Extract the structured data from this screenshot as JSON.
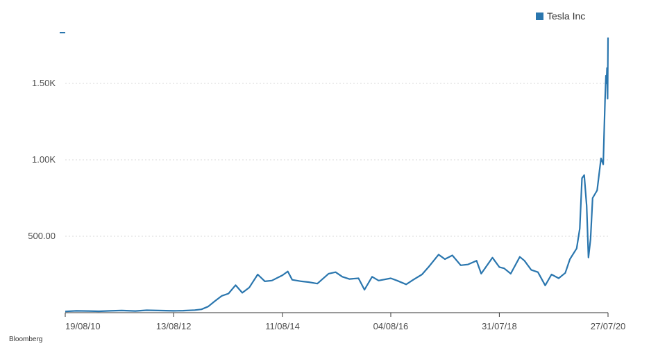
{
  "colors": {
    "series": "#2a76ae",
    "grid": "#d9d9d9",
    "axis": "#333333"
  },
  "source": "Bloomberg",
  "chart_data": {
    "type": "line",
    "series": [
      {
        "name": "Tesla Inc",
        "points": [
          [
            "2010-08-19",
            8
          ],
          [
            "2010-11-01",
            12
          ],
          [
            "2011-01-15",
            11
          ],
          [
            "2011-04-01",
            9
          ],
          [
            "2011-06-15",
            12
          ],
          [
            "2011-09-01",
            14
          ],
          [
            "2011-12-01",
            11
          ],
          [
            "2012-02-15",
            16
          ],
          [
            "2012-05-01",
            14
          ],
          [
            "2012-08-13",
            12
          ],
          [
            "2012-10-15",
            13
          ],
          [
            "2013-01-01",
            17
          ],
          [
            "2013-02-15",
            22
          ],
          [
            "2013-04-01",
            40
          ],
          [
            "2013-05-15",
            75
          ],
          [
            "2013-07-01",
            110
          ],
          [
            "2013-08-15",
            125
          ],
          [
            "2013-10-01",
            180
          ],
          [
            "2013-11-15",
            130
          ],
          [
            "2014-01-01",
            165
          ],
          [
            "2014-02-26",
            250
          ],
          [
            "2014-04-15",
            205
          ],
          [
            "2014-06-01",
            210
          ],
          [
            "2014-08-11",
            245
          ],
          [
            "2014-09-15",
            270
          ],
          [
            "2014-10-15",
            215
          ],
          [
            "2014-12-15",
            205
          ],
          [
            "2015-02-01",
            200
          ],
          [
            "2015-04-01",
            190
          ],
          [
            "2015-06-15",
            255
          ],
          [
            "2015-08-01",
            265
          ],
          [
            "2015-09-15",
            235
          ],
          [
            "2015-11-01",
            220
          ],
          [
            "2016-01-01",
            225
          ],
          [
            "2016-02-10",
            150
          ],
          [
            "2016-04-01",
            235
          ],
          [
            "2016-05-15",
            210
          ],
          [
            "2016-08-04",
            225
          ],
          [
            "2016-09-15",
            210
          ],
          [
            "2016-11-15",
            185
          ],
          [
            "2017-01-01",
            215
          ],
          [
            "2017-03-01",
            250
          ],
          [
            "2017-04-15",
            300
          ],
          [
            "2017-06-20",
            380
          ],
          [
            "2017-08-01",
            350
          ],
          [
            "2017-09-20",
            375
          ],
          [
            "2017-11-15",
            310
          ],
          [
            "2018-01-01",
            315
          ],
          [
            "2018-03-01",
            340
          ],
          [
            "2018-04-01",
            255
          ],
          [
            "2018-06-15",
            360
          ],
          [
            "2018-07-31",
            298
          ],
          [
            "2018-09-01",
            290
          ],
          [
            "2018-10-15",
            255
          ],
          [
            "2018-12-15",
            365
          ],
          [
            "2019-01-15",
            340
          ],
          [
            "2019-03-01",
            280
          ],
          [
            "2019-04-15",
            265
          ],
          [
            "2019-06-03",
            178
          ],
          [
            "2019-07-15",
            250
          ],
          [
            "2019-09-01",
            225
          ],
          [
            "2019-10-15",
            260
          ],
          [
            "2019-11-15",
            350
          ],
          [
            "2019-12-30",
            420
          ],
          [
            "2020-01-20",
            550
          ],
          [
            "2020-02-04",
            880
          ],
          [
            "2020-02-19",
            900
          ],
          [
            "2020-03-06",
            700
          ],
          [
            "2020-03-18",
            361
          ],
          [
            "2020-04-01",
            480
          ],
          [
            "2020-04-15",
            750
          ],
          [
            "2020-05-15",
            800
          ],
          [
            "2020-06-10",
            1010
          ],
          [
            "2020-06-25",
            970
          ],
          [
            "2020-07-07",
            1390
          ],
          [
            "2020-07-13",
            1550
          ],
          [
            "2020-07-17",
            1500
          ],
          [
            "2020-07-20",
            1600
          ],
          [
            "2020-07-22",
            1590
          ],
          [
            "2020-07-24",
            1400
          ],
          [
            "2020-07-27",
            1800
          ]
        ]
      }
    ],
    "x_ticks": [
      {
        "date": "2010-08-19",
        "label": "19/08/10"
      },
      {
        "date": "2012-08-13",
        "label": "13/08/12"
      },
      {
        "date": "2014-08-11",
        "label": "11/08/14"
      },
      {
        "date": "2016-08-04",
        "label": "04/08/16"
      },
      {
        "date": "2018-07-31",
        "label": "31/07/18"
      },
      {
        "date": "2020-07-27",
        "label": "27/07/20"
      }
    ],
    "y_ticks": [
      {
        "value": 500,
        "label": "500.00"
      },
      {
        "value": 1000,
        "label": "1.00K"
      },
      {
        "value": 1500,
        "label": "1.50K"
      }
    ],
    "xlim": [
      "2010-08-19",
      "2020-07-27"
    ],
    "ylim": [
      0,
      2000
    ],
    "grid": "horizontal dashed",
    "legend": "top-right"
  }
}
